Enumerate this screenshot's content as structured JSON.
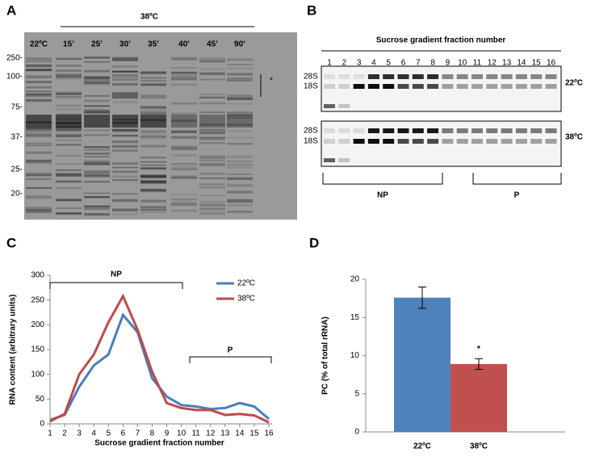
{
  "panel_labels": [
    "A",
    "B",
    "C",
    "D"
  ],
  "gel_a": {
    "group_label": "38ºC",
    "lanes": [
      "22ºC",
      "15’",
      "25’",
      "30’",
      "35’",
      "40’",
      "45’",
      "90’"
    ],
    "markers": [
      "250-",
      "100-",
      "75-",
      "37-",
      "25-",
      "20-"
    ],
    "bracket_note": "*"
  },
  "gel_b": {
    "title": "Sucrose gradient fraction number",
    "fractions": [
      "1",
      "2",
      "3",
      "4",
      "5",
      "6",
      "7",
      "8",
      "9",
      "10",
      "11",
      "12",
      "13",
      "14",
      "15",
      "16"
    ],
    "band_labels": [
      "28S",
      "18S"
    ],
    "conditions": [
      "22ºC",
      "38ºC"
    ],
    "groups": [
      "NP",
      "P"
    ]
  },
  "chart_data": [
    {
      "type": "line",
      "xlabel": "Sucrose gradient fraction number",
      "ylabel": "RNA content (arbitrary units)",
      "x": [
        1,
        2,
        3,
        4,
        5,
        6,
        7,
        8,
        9,
        10,
        11,
        12,
        13,
        14,
        15,
        16
      ],
      "series": [
        {
          "name": "22ºC",
          "color": "#4a7ebb",
          "values": [
            8,
            18,
            75,
            118,
            140,
            220,
            185,
            92,
            55,
            38,
            35,
            30,
            32,
            42,
            35,
            10
          ]
        },
        {
          "name": "38ºC",
          "color": "#be4b48",
          "values": [
            5,
            20,
            100,
            140,
            205,
            258,
            190,
            105,
            42,
            32,
            28,
            28,
            18,
            20,
            17,
            3
          ]
        }
      ],
      "xlim": [
        1,
        16
      ],
      "xticks": [
        1,
        2,
        3,
        4,
        5,
        6,
        7,
        8,
        9,
        10,
        11,
        12,
        13,
        14,
        15,
        16
      ],
      "ylim": [
        0,
        300
      ],
      "yticks": [
        0,
        50,
        100,
        150,
        200,
        250,
        300
      ],
      "legend": "upper right",
      "grid": false,
      "annotations": [
        "NP",
        "P"
      ]
    },
    {
      "type": "bar",
      "ylabel": "PC (% of total rRNA)",
      "categories": [
        "22ºC",
        "38ºC"
      ],
      "values": [
        17.6,
        8.9
      ],
      "errors": [
        1.4,
        0.7
      ],
      "colors": [
        "#4f81bd",
        "#c0504d"
      ],
      "ylim": [
        0,
        20
      ],
      "yticks": [
        0,
        5,
        10,
        15,
        20
      ],
      "grid": false,
      "annotation": "*"
    }
  ]
}
